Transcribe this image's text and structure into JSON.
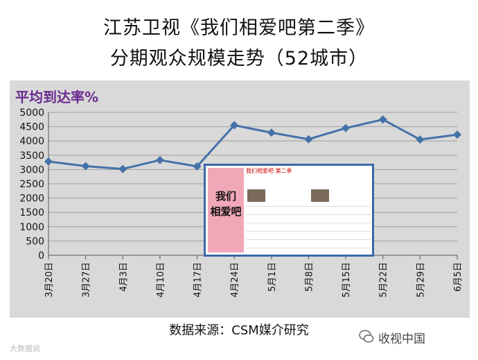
{
  "title_line1": "江苏卫视《我们相爱吧第二季》",
  "title_line2": "分期观众规模走势（52城市）",
  "metric_label": "平均到达率%",
  "source": "数据来源：CSM媒介研究",
  "watermark": "收视中国",
  "watermark_left": "大数据说",
  "inset": {
    "heading": "我们相爱吧 第二季",
    "poster_text": "我们相爱吧"
  },
  "colors": {
    "line": "#4472a8",
    "panel": "#d9d9d9",
    "label": "#6b2c8f"
  },
  "chart_data": {
    "type": "line",
    "categories": [
      "3月20日",
      "3月27日",
      "4月3日",
      "4月10日",
      "4月17日",
      "4月24日",
      "5月1日",
      "5月8日",
      "5月15日",
      "5月22日",
      "5月29日",
      "6月5日"
    ],
    "values": [
      3280,
      3120,
      3020,
      3330,
      3110,
      4550,
      4290,
      4060,
      4450,
      4750,
      4050,
      4220
    ],
    "yticks": [
      0,
      500,
      1000,
      1500,
      2000,
      2500,
      3000,
      3500,
      4000,
      4500,
      5000
    ],
    "ylim": [
      0,
      5000
    ],
    "grid": true,
    "legend": "none"
  }
}
